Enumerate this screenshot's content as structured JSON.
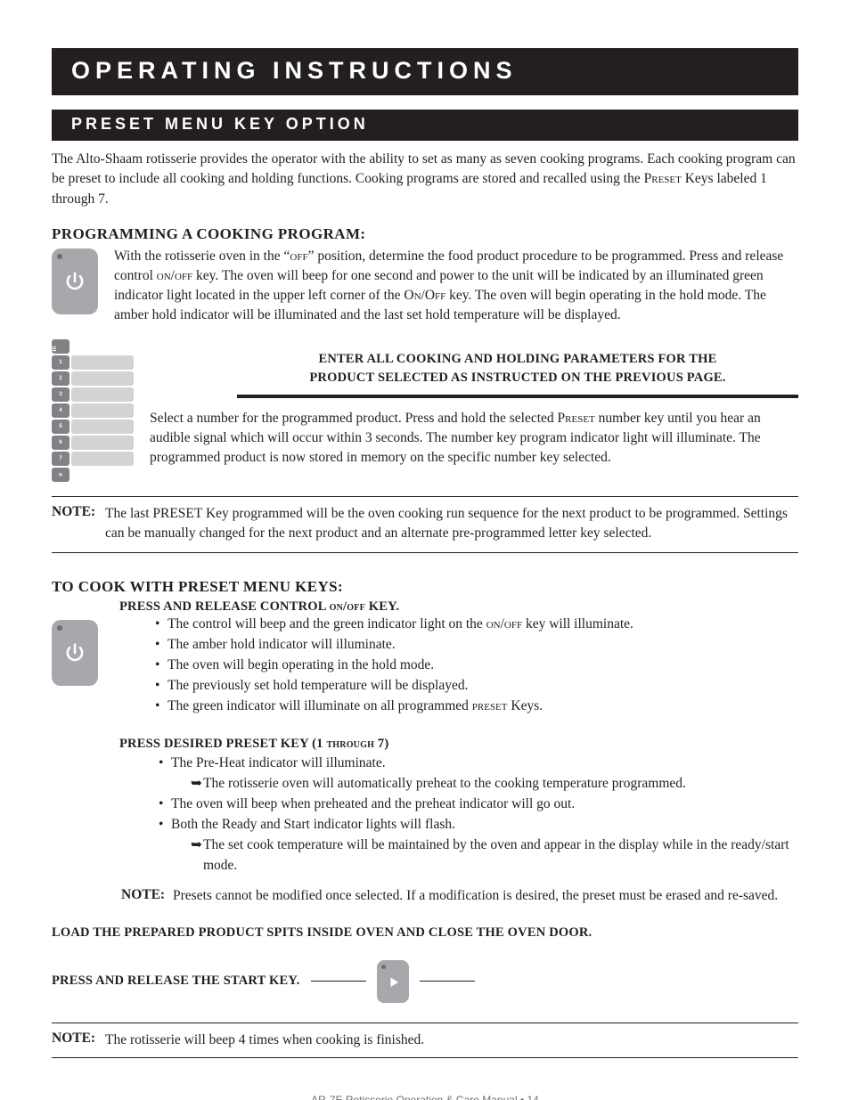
{
  "banner": "OPERATING INSTRUCTIONS",
  "subbanner": "PRESET MENU KEY OPTION",
  "intro_html": "The Alto-Shaam rotisserie provides the operator with the ability to set as many as seven cooking programs. Each cooking program can be preset to include all cooking and holding functions.  Cooking programs are stored and recalled using the <span class='sc'>Preset</span> Keys labeled 1 through 7.",
  "prog_heading": "PROGRAMMING A COOKING PROGRAM:",
  "prog_body_html": "With the rotisserie oven in the “<span class='sc'>off</span>” position, determine the food product procedure to be programmed.  Press and release control <span class='sc'>on/off</span> key.  The oven will beep for one second and power to the unit will be indicated by an illuminated green indicator light located in the upper left corner of the <span class='sc'>On/Off</span> key.  The oven will begin operating in the hold mode.  The amber hold indicator will be illuminated and the last set hold temperature will be displayed.",
  "param_line1": "ENTER ALL COOKING AND HOLDING PARAMETERS FOR THE",
  "param_line2": "PRODUCT SELECTED AS INSTRUCTED ON THE PREVIOUS PAGE.",
  "select_body_html": "Select a number for the programmed product.  Press and hold the selected <span class='sc'>Preset</span> number key until you hear an audible signal which will occur within 3 seconds.  The number key program indicator light will illuminate.  The programmed product is now stored in memory on the specific number key selected.",
  "note1_label": "NOTE:",
  "note1_body": "The last PRESET Key programmed will be the oven cooking run sequence for the next product to be programmed.  Settings can be manually changed for the next product and an alternate pre-programmed letter key selected.",
  "cook_heading": "TO COOK WITH PRESET MENU KEYS:",
  "step1_head_html": "PRESS AND RELEASE CONTROL <span class='sc'>on/off</span> KEY.",
  "step1_items": [
    "The control will beep and the green indicator light on the <span class='sc'>on/off</span> key will illuminate.",
    "The amber hold indicator will illuminate.",
    "The oven will begin operating in the hold mode.",
    "The previously set hold temperature will be displayed.",
    "The green indicator will illuminate on all programmed <span class='sc'>preset</span> Keys."
  ],
  "step2_head_html": "PRESS DESIRED PRESET KEY (1 <span class='sc'>through</span> 7)",
  "step2_items": [
    {
      "text": "The Pre-Heat indicator will illuminate.",
      "sub": "The rotisserie oven will automatically preheat to the cooking temperature programmed."
    },
    {
      "text": "The oven will beep when preheated and the preheat indicator will go out."
    },
    {
      "text": "Both the Ready and Start indicator lights will flash.",
      "sub": "The set cook temperature will be maintained by the oven and appear in the display while in the ready/start mode."
    }
  ],
  "note2_label": "NOTE:",
  "note2_body": "Presets cannot be modified once selected.  If a modification is desired, the preset must be erased and re-saved.",
  "load_line": "LOAD THE PREPARED PRODUCT SPITS INSIDE OVEN AND CLOSE THE OVEN DOOR.",
  "press_start": "PRESS AND RELEASE THE START KEY.",
  "note3_label": "NOTE:",
  "note3_body": "The rotisserie will beep 4 times when cooking is finished.",
  "footer": "AR-7E Rotisserie Operation & Care Manual • 14",
  "colors": {
    "black": "#231f20",
    "key_gray": "#a6a8ab",
    "pad_gray": "#808285",
    "footer_gray": "#6d6e71"
  },
  "keypad_numbers": [
    "1",
    "2",
    "3",
    "4",
    "5",
    "6",
    "7"
  ]
}
